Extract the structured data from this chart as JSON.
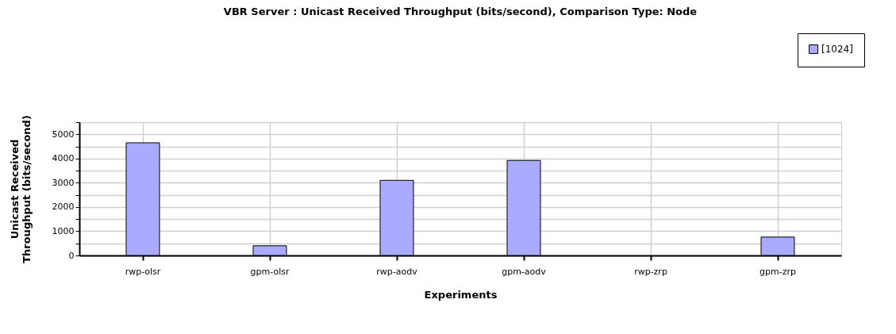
{
  "chart_data": {
    "type": "bar",
    "title": "VBR Server :  Unicast Received Throughput (bits/second), Comparison Type: Node",
    "xlabel": "Experiments",
    "ylabel": "Unicast Received\nThroughput (bits/second)",
    "categories": [
      "rwp-olsr",
      "gpm-olsr",
      "rwp-aodv",
      "gpm-aodv",
      "rwp-zrp",
      "gpm-zrp"
    ],
    "series": [
      {
        "name": "[1024]",
        "color": "#aaaaff",
        "values": [
          4650,
          400,
          3100,
          3920,
          0,
          760
        ]
      }
    ],
    "ylim": [
      0,
      5500
    ],
    "yticks": [
      0,
      {
        "value": 500,
        "label": null
      },
      1000,
      {
        "value": 1500,
        "label": null
      },
      2000,
      {
        "value": 2500,
        "label": null
      },
      3000,
      {
        "value": 3500,
        "label": null
      },
      4000,
      {
        "value": 4500,
        "label": null
      },
      5000,
      {
        "value": 5500,
        "label": null
      }
    ],
    "grid": true,
    "legend": "top right"
  }
}
